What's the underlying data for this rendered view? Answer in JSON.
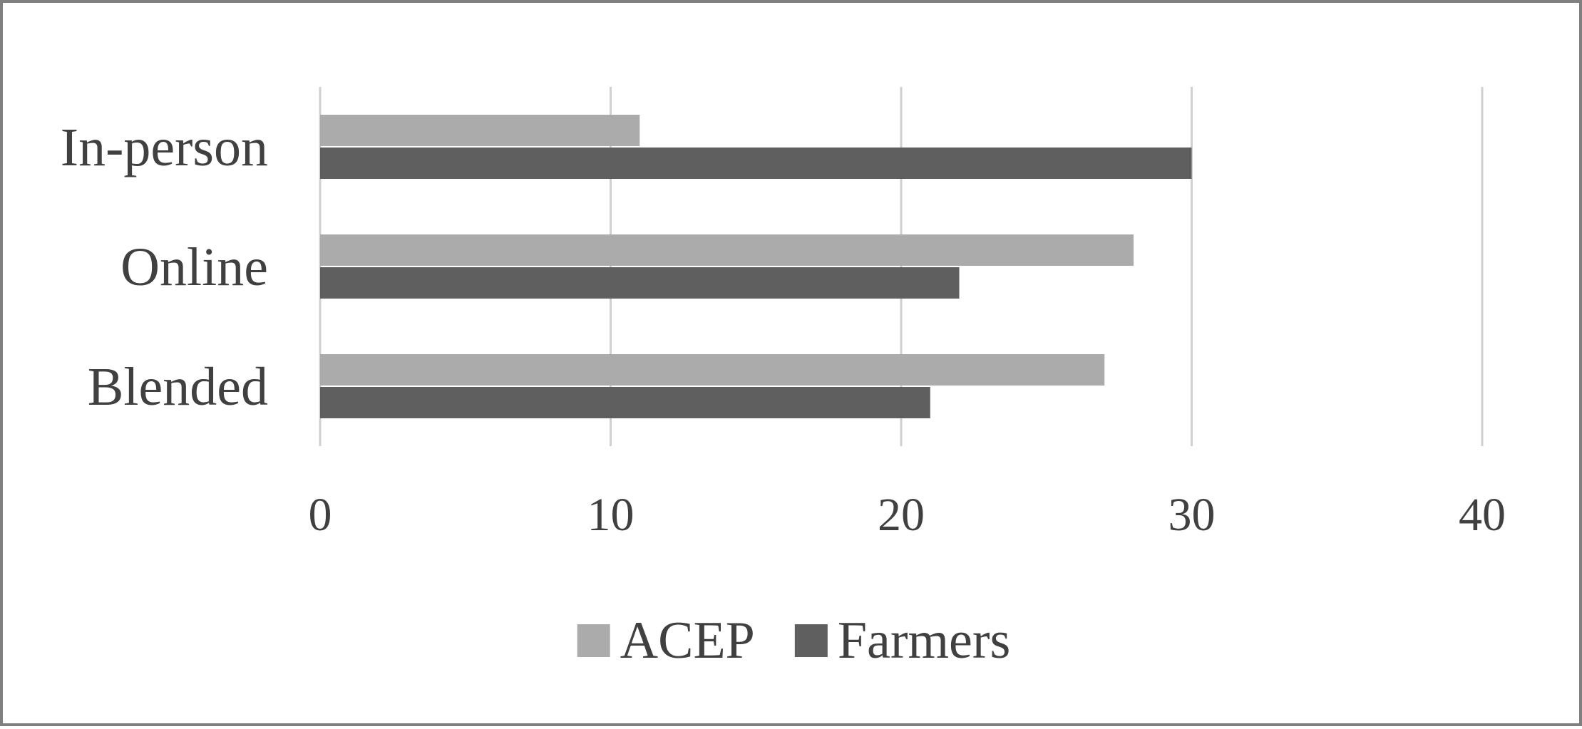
{
  "chart_data": {
    "type": "bar",
    "orientation": "horizontal",
    "categories": [
      "In-person",
      "Online",
      "Blended"
    ],
    "series": [
      {
        "name": "ACEP",
        "values": [
          11,
          28,
          27
        ],
        "color": "#ababab"
      },
      {
        "name": "Farmers",
        "values": [
          30,
          22,
          21
        ],
        "color": "#5f5f5f"
      }
    ],
    "xlim": [
      0,
      40
    ],
    "xticks": [
      0,
      10,
      20,
      30,
      40
    ],
    "grid": true,
    "grid_color": "#d0d0d0",
    "legend_position": "bottom",
    "title": "",
    "xlabel": "",
    "ylabel": ""
  }
}
